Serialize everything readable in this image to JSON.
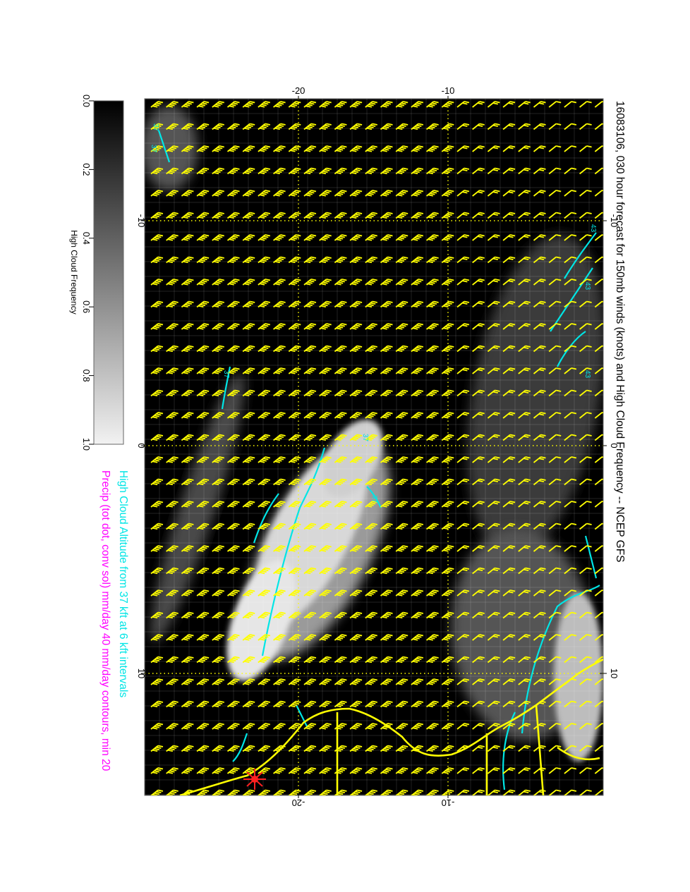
{
  "title": "16083106, 030 hour forecast for 150mb winds (knots) and High Cloud Frequency -- NCEP GFS",
  "subtitle_altitude": "High Cloud Altitude from 37 kft at 6 kft intervals",
  "subtitle_precip": "Precip (tot dot, conv sol) mm/day 40 mm/day contours, min 20",
  "colorbar": {
    "label": "High Cloud Frequency",
    "ticks": [
      "0.0",
      "0.2",
      "0.4",
      "0.6",
      "0.8",
      "1.0"
    ]
  },
  "axes": {
    "top_ticks": [
      "-20",
      "-10"
    ],
    "bottom_ticks": [
      "-20",
      "-10"
    ],
    "right_ticks": [
      "-10",
      "0",
      "10"
    ],
    "left_ticks": [
      "-10",
      "0",
      "10"
    ]
  },
  "contour_labels": [
    "37",
    "37",
    "37",
    "37",
    "37",
    "43",
    "43",
    "43"
  ],
  "colors": {
    "background": "#000000",
    "wind_barbs": "#ffff00",
    "altitude_contours": "#00e5e5",
    "precip_text": "#ff00ff",
    "coastline": "#ffff00"
  }
}
